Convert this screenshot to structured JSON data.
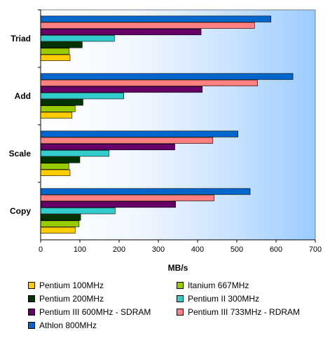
{
  "chart_data": {
    "type": "bar",
    "orientation": "horizontal",
    "xlabel": "MB/s",
    "ylabel": "",
    "xlim": [
      0,
      700
    ],
    "xticks": [
      "0",
      "100",
      "200",
      "300",
      "400",
      "500",
      "600",
      "700"
    ],
    "categories": [
      "Triad",
      "Add",
      "Scale",
      "Copy"
    ],
    "series": [
      {
        "name": "Pentium 100MHz",
        "color": "#ffcc00",
        "values": [
          75,
          80,
          75,
          88
        ]
      },
      {
        "name": "Itanium 667MHz",
        "color": "#99cc00",
        "values": [
          73,
          88,
          72,
          98
        ]
      },
      {
        "name": "Pentium 200MHz",
        "color": "#003300",
        "values": [
          106,
          108,
          100,
          102
        ]
      },
      {
        "name": "Pentium II 300MHz",
        "color": "#33cccc",
        "values": [
          188,
          212,
          174,
          190
        ]
      },
      {
        "name": "Pentium III 600MHz - SDRAM",
        "color": "#660066",
        "values": [
          409,
          412,
          342,
          344
        ]
      },
      {
        "name": "Pentium III 733MHz - RDRAM",
        "color": "#ff8080",
        "values": [
          545,
          553,
          439,
          442
        ]
      },
      {
        "name": "Athlon 800MHz",
        "color": "#0066cc",
        "values": [
          587,
          643,
          503,
          534
        ]
      }
    ],
    "legend_position": "bottom",
    "background": "gradient white-to-blue",
    "grid": false
  }
}
